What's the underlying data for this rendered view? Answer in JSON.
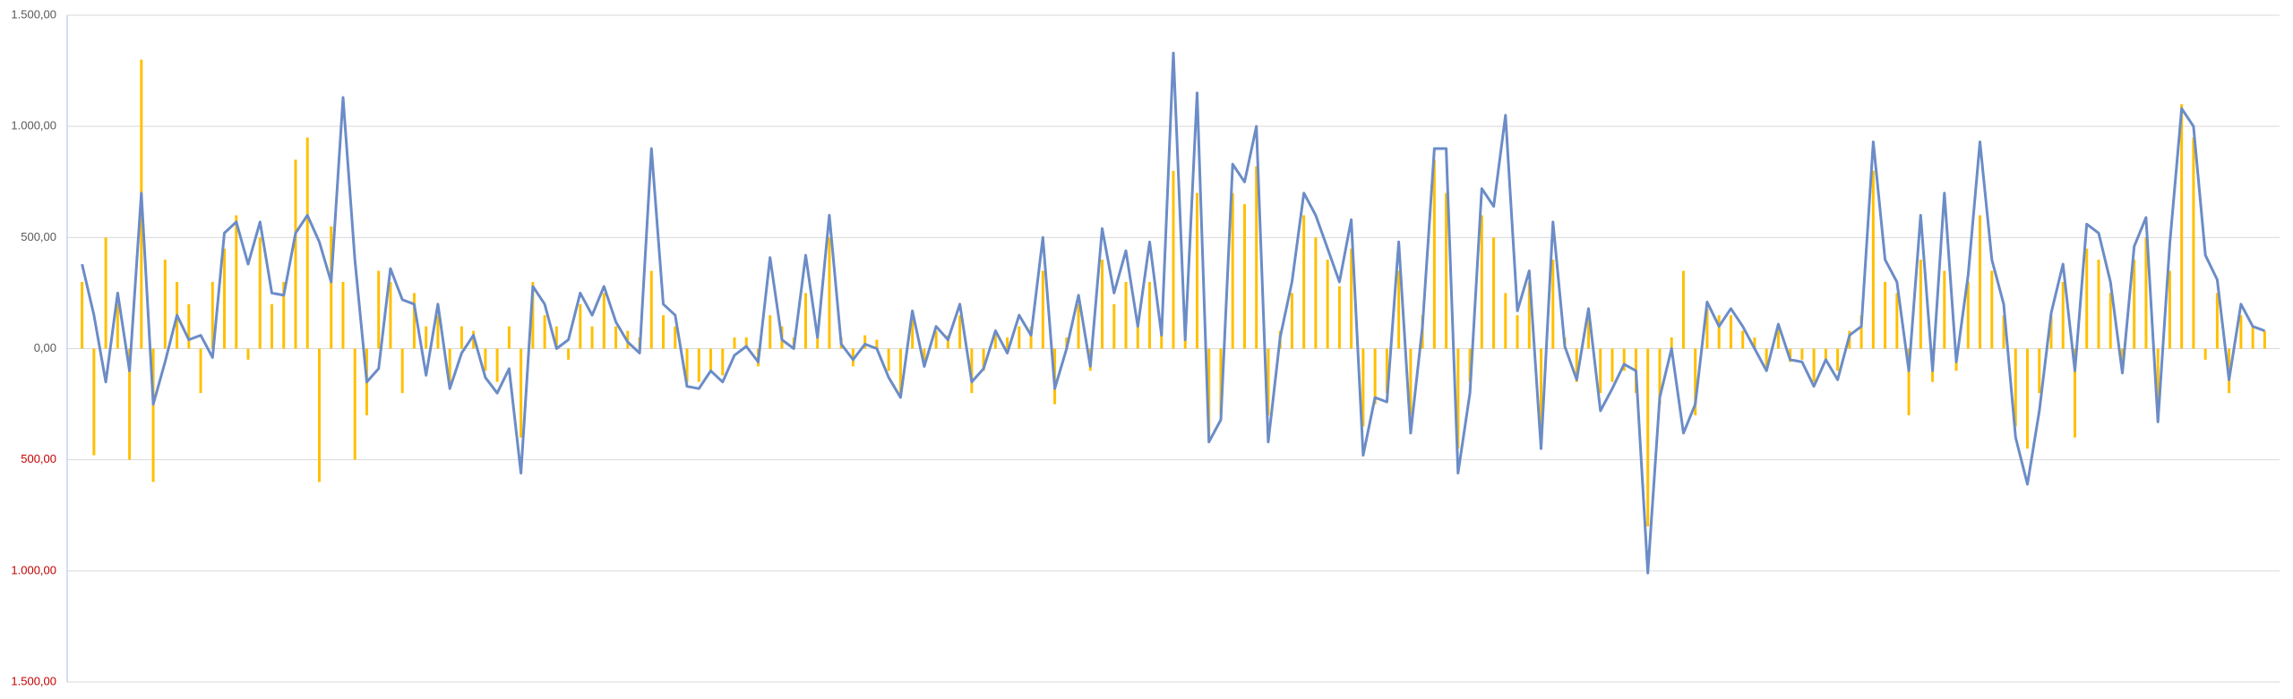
{
  "chart_data": {
    "type": "combo",
    "ylim": [
      -1500,
      1500
    ],
    "yticks": [
      {
        "value": -1500,
        "label": "1.500,00"
      },
      {
        "value": -1000,
        "label": "1.000,00"
      },
      {
        "value": -500,
        "label": "500,00"
      },
      {
        "value": 0,
        "label": "0,00"
      },
      {
        "value": 500,
        "label": "500,00"
      },
      {
        "value": 1000,
        "label": "1.000,00"
      },
      {
        "value": 1500,
        "label": "1.500,00"
      }
    ],
    "negative_tick_color": "#c00000",
    "grid": true,
    "series": [
      {
        "type": "bar",
        "color": "#ffc000",
        "values": [
          300,
          -480,
          500,
          200,
          -500,
          1300,
          -600,
          400,
          300,
          200,
          -200,
          300,
          450,
          600,
          -50,
          500,
          200,
          300,
          850,
          950,
          -600,
          550,
          300,
          -500,
          -300,
          350,
          300,
          -200,
          250,
          100,
          150,
          -150,
          100,
          80,
          -100,
          -150,
          100,
          -400,
          300,
          150,
          100,
          -50,
          200,
          100,
          250,
          100,
          80,
          50,
          350,
          150,
          100,
          -150,
          -150,
          -100,
          -120,
          50,
          50,
          -80,
          150,
          100,
          50,
          250,
          80,
          500,
          50,
          -80,
          60,
          40,
          -100,
          -200,
          150,
          -60,
          80,
          60,
          150,
          -200,
          -100,
          80,
          50,
          100,
          100,
          350,
          -250,
          50,
          200,
          -100,
          400,
          200,
          300,
          100,
          300,
          80,
          800,
          100,
          700,
          -400,
          -300,
          700,
          650,
          820,
          -300,
          80,
          250,
          600,
          500,
          400,
          280,
          450,
          -350,
          -250,
          -200,
          350,
          -300,
          150,
          850,
          700,
          -450,
          -150,
          600,
          500,
          250,
          150,
          300,
          -400,
          400,
          50,
          -150,
          150,
          -200,
          -150,
          -100,
          -200,
          -800,
          -250,
          50,
          350,
          -300,
          180,
          150,
          150,
          80,
          50,
          -80,
          100,
          -60,
          -50,
          -150,
          -60,
          -100,
          80,
          150,
          800,
          300,
          250,
          -300,
          400,
          -150,
          350,
          -100,
          300,
          600,
          350,
          150,
          -350,
          -450,
          -200,
          150,
          300,
          -400,
          450,
          400,
          250,
          -100,
          400,
          500,
          -300,
          350,
          1100,
          950,
          -50,
          250,
          -200,
          150,
          100,
          80
        ]
      },
      {
        "type": "line",
        "color": "#6b8cc7",
        "values": [
          380,
          150,
          -150,
          250,
          -100,
          700,
          -250,
          -60,
          150,
          40,
          60,
          -40,
          520,
          570,
          380,
          570,
          250,
          240,
          520,
          600,
          480,
          300,
          1130,
          400,
          -150,
          -90,
          360,
          220,
          200,
          -120,
          200,
          -180,
          -20,
          60,
          -130,
          -200,
          -90,
          -560,
          280,
          200,
          0,
          40,
          250,
          150,
          280,
          120,
          30,
          -20,
          900,
          200,
          150,
          -170,
          -180,
          -100,
          -150,
          -30,
          10,
          -60,
          410,
          40,
          0,
          420,
          50,
          600,
          20,
          -50,
          20,
          0,
          -130,
          -220,
          170,
          -80,
          100,
          40,
          200,
          -150,
          -90,
          80,
          -20,
          150,
          60,
          500,
          -180,
          0,
          240,
          -80,
          540,
          250,
          440,
          100,
          480,
          60,
          1330,
          40,
          1150,
          -420,
          -320,
          830,
          750,
          1000,
          -420,
          50,
          300,
          700,
          600,
          450,
          300,
          580,
          -480,
          -220,
          -240,
          480,
          -380,
          100,
          900,
          900,
          -560,
          -200,
          720,
          640,
          1050,
          170,
          350,
          -450,
          570,
          10,
          -140,
          180,
          -280,
          -180,
          -70,
          -100,
          -1010,
          -220,
          0,
          -380,
          -250,
          210,
          100,
          180,
          100,
          0,
          -100,
          110,
          -50,
          -60,
          -170,
          -50,
          -140,
          60,
          100,
          930,
          400,
          300,
          -100,
          600,
          -100,
          700,
          -60,
          330,
          930,
          400,
          200,
          -400,
          -610,
          -280,
          160,
          380,
          -100,
          560,
          520,
          300,
          -110,
          460,
          590,
          -330,
          470,
          1080,
          1000,
          420,
          310,
          -140,
          200,
          100,
          80
        ]
      }
    ]
  }
}
